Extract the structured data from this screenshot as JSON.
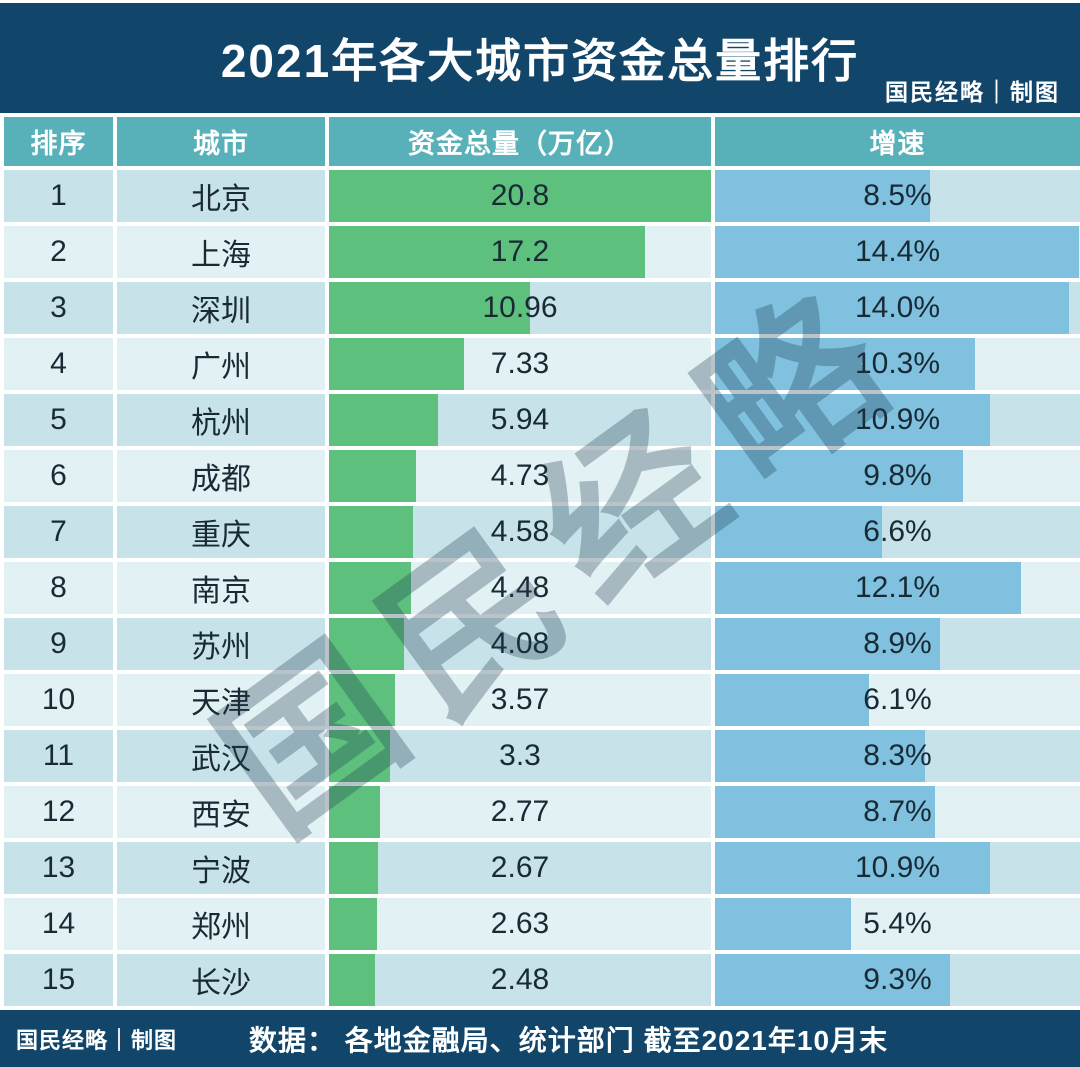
{
  "header": {
    "title": "2021年各大城市资金总量排行",
    "credit": "国民经略｜制图"
  },
  "table": {
    "columns": [
      "排序",
      "城市",
      "资金总量（万亿）",
      "增速"
    ],
    "rows": [
      {
        "rank": "1",
        "city": "北京",
        "value": "20.8",
        "value_num": 20.8,
        "growth": "8.5%",
        "growth_num": 8.5
      },
      {
        "rank": "2",
        "city": "上海",
        "value": "17.2",
        "value_num": 17.2,
        "growth": "14.4%",
        "growth_num": 14.4
      },
      {
        "rank": "3",
        "city": "深圳",
        "value": "10.96",
        "value_num": 10.96,
        "growth": "14.0%",
        "growth_num": 14.0
      },
      {
        "rank": "4",
        "city": "广州",
        "value": "7.33",
        "value_num": 7.33,
        "growth": "10.3%",
        "growth_num": 10.3
      },
      {
        "rank": "5",
        "city": "杭州",
        "value": "5.94",
        "value_num": 5.94,
        "growth": "10.9%",
        "growth_num": 10.9
      },
      {
        "rank": "6",
        "city": "成都",
        "value": "4.73",
        "value_num": 4.73,
        "growth": "9.8%",
        "growth_num": 9.8
      },
      {
        "rank": "7",
        "city": "重庆",
        "value": "4.58",
        "value_num": 4.58,
        "growth": "6.6%",
        "growth_num": 6.6
      },
      {
        "rank": "8",
        "city": "南京",
        "value": "4.48",
        "value_num": 4.48,
        "growth": "12.1%",
        "growth_num": 12.1
      },
      {
        "rank": "9",
        "city": "苏州",
        "value": "4.08",
        "value_num": 4.08,
        "growth": "8.9%",
        "growth_num": 8.9
      },
      {
        "rank": "10",
        "city": "天津",
        "value": "3.57",
        "value_num": 3.57,
        "growth": "6.1%",
        "growth_num": 6.1
      },
      {
        "rank": "11",
        "city": "武汉",
        "value": "3.3",
        "value_num": 3.3,
        "growth": "8.3%",
        "growth_num": 8.3
      },
      {
        "rank": "12",
        "city": "西安",
        "value": "2.77",
        "value_num": 2.77,
        "growth": "8.7%",
        "growth_num": 8.7
      },
      {
        "rank": "13",
        "city": "宁波",
        "value": "2.67",
        "value_num": 2.67,
        "growth": "10.9%",
        "growth_num": 10.9
      },
      {
        "rank": "14",
        "city": "郑州",
        "value": "2.63",
        "value_num": 2.63,
        "growth": "5.4%",
        "growth_num": 5.4
      },
      {
        "rank": "15",
        "city": "长沙",
        "value": "2.48",
        "value_num": 2.48,
        "growth": "9.3%",
        "growth_num": 9.3
      }
    ]
  },
  "watermark": "国民经略",
  "footer": {
    "credit": "国民经略｜制图",
    "source": "数据： 各地金融局、统计部门  截至2021年10月末"
  },
  "colors": {
    "header_bg": "#12456a",
    "column_header_bg": "#58b1b9",
    "row_odd_bg": "#c7e3e9",
    "row_even_bg": "#e2f1f3",
    "value_bar": "#5dc17d",
    "growth_bar": "#7fc1de",
    "text_dark": "#1a2a35",
    "text_light": "#ffffff"
  },
  "chart_data": {
    "type": "bar",
    "orientation": "horizontal",
    "title": "2021年各大城市资金总量排行",
    "categories": [
      "北京",
      "上海",
      "深圳",
      "广州",
      "杭州",
      "成都",
      "重庆",
      "南京",
      "苏州",
      "天津",
      "武汉",
      "西安",
      "宁波",
      "郑州",
      "长沙"
    ],
    "series": [
      {
        "name": "资金总量（万亿）",
        "values": [
          20.8,
          17.2,
          10.96,
          7.33,
          5.94,
          4.73,
          4.58,
          4.48,
          4.08,
          3.57,
          3.3,
          2.77,
          2.67,
          2.63,
          2.48
        ]
      },
      {
        "name": "增速",
        "unit": "%",
        "values": [
          8.5,
          14.4,
          14.0,
          10.3,
          10.9,
          9.8,
          6.6,
          12.1,
          8.9,
          6.1,
          8.3,
          8.7,
          10.9,
          5.4,
          9.3
        ]
      }
    ],
    "value_axis_max": 20.8,
    "growth_axis_max": 14.45,
    "grid": false,
    "legend_position": "none",
    "source_note": "各地金融局、统计部门 截至2021年10月末"
  }
}
